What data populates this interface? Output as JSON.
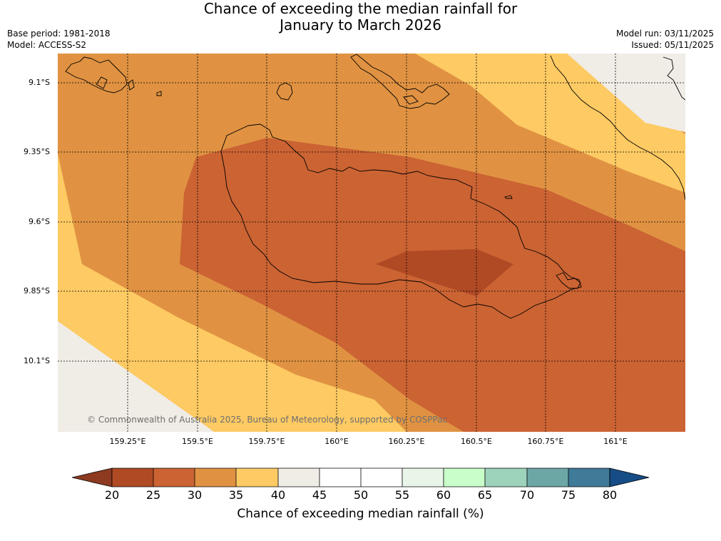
{
  "title": {
    "line1": "Chance of exceeding the median rainfall for",
    "line2": "January to March 2026"
  },
  "meta": {
    "base_period": "Base period: 1981-2018",
    "model": "Model: ACCESS-S2",
    "model_run": "Model run: 03/11/2025",
    "issued": "Issued: 05/11/2025"
  },
  "map": {
    "latitude_labels": [
      "9.1°S",
      "9.35°S",
      "9.6°S",
      "9.85°S",
      "10.1°S"
    ],
    "longitude_labels": [
      "159.25°E",
      "159.5°E",
      "159.75°E",
      "160°E",
      "160.25°E",
      "160.5°E",
      "160.75°E",
      "161°E"
    ],
    "copyright": "© Commonwealth of Australia 2025, Bureau of Meteorology, supported by COSPPac"
  },
  "colorbar": {
    "title": "Chance of exceeding median rainfall (%)",
    "ticks": [
      "20",
      "25",
      "30",
      "35",
      "40",
      "45",
      "50",
      "55",
      "60",
      "65",
      "70",
      "75",
      "80"
    ],
    "colors": {
      "under": "#8e3a20",
      "c20_25": "#b04a25",
      "c25_30": "#cb6333",
      "c30_35": "#e09242",
      "c35_40": "#fdca63",
      "c40_45": "#f0ece6",
      "c45_50": "#ffffff",
      "c50_55": "#ffffff",
      "c55_60": "#e8f5e8",
      "c60_65": "#c9fdc9",
      "c65_70": "#9dd2bb",
      "c70_75": "#6ca7a6",
      "c75_80": "#3f7a98",
      "over": "#164d86"
    }
  }
}
